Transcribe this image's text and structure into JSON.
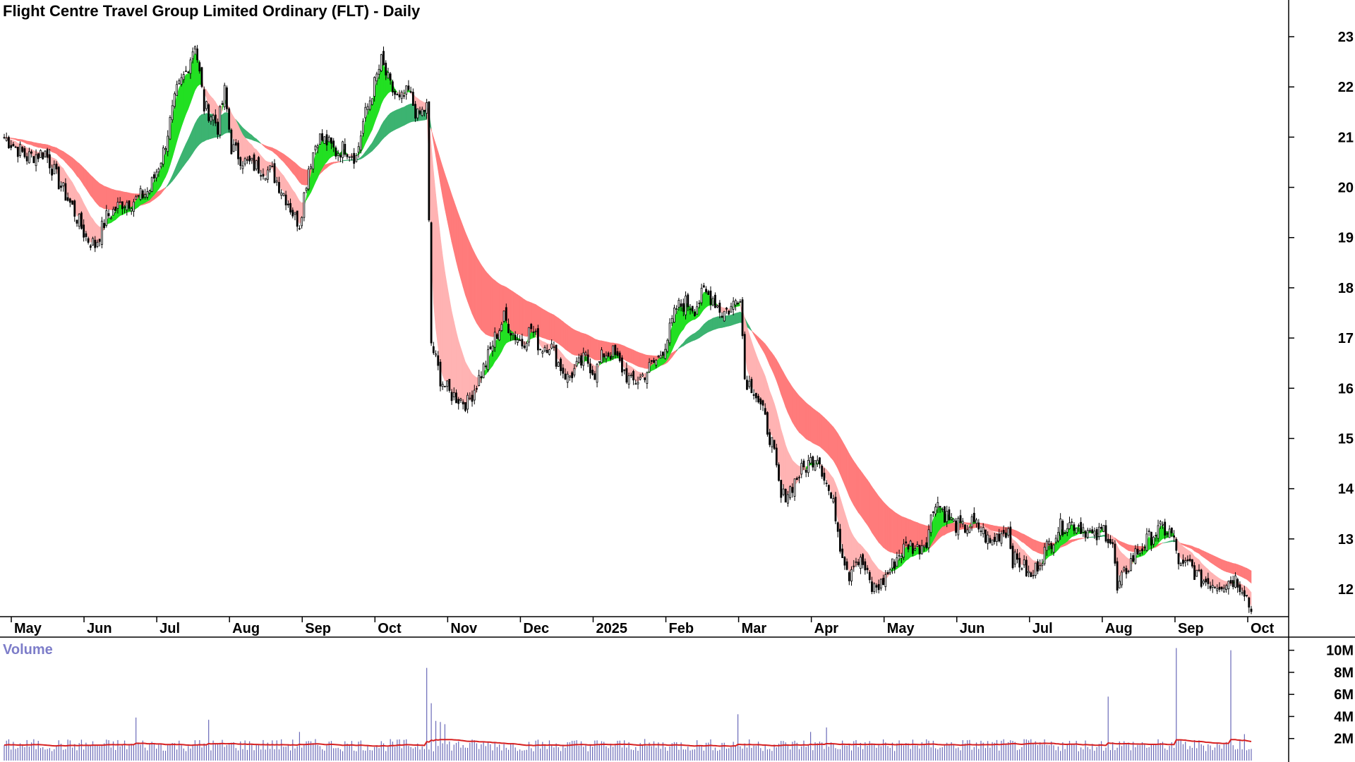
{
  "chart_data": [
    {
      "type": "candlestick",
      "title": "Flight Centre Travel Group Limited Ordinary (FLT) - Daily",
      "y_axis": {
        "position": "right",
        "ticks": [
          12,
          13,
          14,
          15,
          16,
          17,
          18,
          19,
          20,
          21,
          22,
          23
        ],
        "ylim": [
          11.3,
          23.4
        ]
      },
      "x_axis": {
        "tick_labels": [
          "May",
          "Jun",
          "Jul",
          "Aug",
          "Sep",
          "Oct",
          "Nov",
          "Dec",
          "2025",
          "Feb",
          "Mar",
          "Apr",
          "May",
          "Jun",
          "Jul",
          "Aug",
          "Sep",
          "Oct"
        ]
      },
      "price_anchors": [
        [
          0,
          21.0
        ],
        [
          10,
          20.6
        ],
        [
          18,
          20.7
        ],
        [
          24,
          20.1
        ],
        [
          30,
          19.6
        ],
        [
          36,
          19.0
        ],
        [
          40,
          18.85
        ],
        [
          45,
          19.4
        ],
        [
          52,
          19.7
        ],
        [
          58,
          19.75
        ],
        [
          64,
          19.95
        ],
        [
          70,
          20.7
        ],
        [
          76,
          21.9
        ],
        [
          80,
          22.3
        ],
        [
          84,
          22.9
        ],
        [
          88,
          21.6
        ],
        [
          92,
          21.4
        ],
        [
          94,
          21.2
        ],
        [
          97,
          21.9
        ],
        [
          100,
          20.8
        ],
        [
          106,
          20.5
        ],
        [
          112,
          20.4
        ],
        [
          118,
          20.3
        ],
        [
          124,
          19.8
        ],
        [
          128,
          19.4
        ],
        [
          130,
          19.3
        ],
        [
          134,
          20.4
        ],
        [
          138,
          21.0
        ],
        [
          142,
          20.9
        ],
        [
          146,
          20.7
        ],
        [
          150,
          20.8
        ],
        [
          155,
          20.6
        ],
        [
          158,
          21.3
        ],
        [
          162,
          21.9
        ],
        [
          166,
          22.5
        ],
        [
          170,
          22.0
        ],
        [
          174,
          21.7
        ],
        [
          178,
          21.9
        ],
        [
          182,
          21.4
        ],
        [
          186,
          21.6
        ],
        [
          188,
          16.9
        ],
        [
          192,
          16.2
        ],
        [
          196,
          15.9
        ],
        [
          200,
          15.8
        ],
        [
          204,
          15.7
        ],
        [
          208,
          16.1
        ],
        [
          212,
          16.5
        ],
        [
          216,
          17.0
        ],
        [
          220,
          17.4
        ],
        [
          224,
          17.1
        ],
        [
          228,
          16.9
        ],
        [
          232,
          17.2
        ],
        [
          236,
          16.8
        ],
        [
          240,
          16.9
        ],
        [
          244,
          16.5
        ],
        [
          248,
          16.2
        ],
        [
          252,
          16.4
        ],
        [
          256,
          16.6
        ],
        [
          260,
          16.3
        ],
        [
          264,
          16.7
        ],
        [
          268,
          16.7
        ],
        [
          272,
          16.4
        ],
        [
          276,
          16.1
        ],
        [
          280,
          16.2
        ],
        [
          284,
          16.4
        ],
        [
          288,
          16.6
        ],
        [
          292,
          17.0
        ],
        [
          296,
          17.6
        ],
        [
          300,
          17.7
        ],
        [
          304,
          17.6
        ],
        [
          308,
          17.9
        ],
        [
          312,
          17.8
        ],
        [
          316,
          17.5
        ],
        [
          320,
          17.6
        ],
        [
          324,
          17.9
        ],
        [
          326,
          16.2
        ],
        [
          330,
          16.0
        ],
        [
          334,
          15.5
        ],
        [
          338,
          14.9
        ],
        [
          342,
          13.8
        ],
        [
          346,
          14.0
        ],
        [
          350,
          14.3
        ],
        [
          354,
          14.5
        ],
        [
          358,
          14.7
        ],
        [
          362,
          14.1
        ],
        [
          366,
          13.5
        ],
        [
          368,
          12.9
        ],
        [
          372,
          12.3
        ],
        [
          374,
          12.6
        ],
        [
          378,
          12.5
        ],
        [
          382,
          12.0
        ],
        [
          386,
          12.1
        ],
        [
          390,
          12.4
        ],
        [
          394,
          12.7
        ],
        [
          398,
          12.9
        ],
        [
          402,
          12.8
        ],
        [
          406,
          13.0
        ],
        [
          410,
          13.8
        ],
        [
          414,
          13.5
        ],
        [
          418,
          13.3
        ],
        [
          422,
          13.2
        ],
        [
          426,
          13.3
        ],
        [
          430,
          13.2
        ],
        [
          434,
          12.9
        ],
        [
          438,
          13.1
        ],
        [
          442,
          13.2
        ],
        [
          444,
          12.6
        ],
        [
          448,
          12.5
        ],
        [
          452,
          12.2
        ],
        [
          456,
          12.6
        ],
        [
          460,
          12.9
        ],
        [
          464,
          13.2
        ],
        [
          468,
          13.3
        ],
        [
          472,
          13.3
        ],
        [
          476,
          13.2
        ],
        [
          480,
          13.0
        ],
        [
          484,
          13.2
        ],
        [
          488,
          12.9
        ],
        [
          490,
          11.95
        ],
        [
          494,
          12.4
        ],
        [
          498,
          12.7
        ],
        [
          502,
          12.9
        ],
        [
          506,
          13.1
        ],
        [
          510,
          13.2
        ],
        [
          514,
          13.1
        ],
        [
          518,
          12.4
        ],
        [
          522,
          12.5
        ],
        [
          526,
          12.2
        ],
        [
          530,
          12.15
        ],
        [
          534,
          12.1
        ],
        [
          538,
          12.15
        ],
        [
          542,
          12.2
        ],
        [
          546,
          12.0
        ],
        [
          549,
          11.55
        ]
      ],
      "volume": {
        "label": "Volume",
        "ticks": [
          "2M",
          "4M",
          "6M",
          "8M",
          "10M"
        ],
        "ylim": [
          0,
          11000000
        ],
        "baseline_avg": 1400000,
        "spikes": [
          [
            58,
            3900000
          ],
          [
            90,
            3700000
          ],
          [
            130,
            2600000
          ],
          [
            186,
            8400000
          ],
          [
            188,
            5200000
          ],
          [
            190,
            3600000
          ],
          [
            192,
            3500000
          ],
          [
            194,
            3300000
          ],
          [
            323,
            4200000
          ],
          [
            355,
            2600000
          ],
          [
            362,
            3000000
          ],
          [
            400,
            1900000
          ],
          [
            486,
            5800000
          ],
          [
            516,
            10200000
          ],
          [
            540,
            10000000
          ],
          [
            546,
            2400000
          ]
        ]
      }
    }
  ]
}
